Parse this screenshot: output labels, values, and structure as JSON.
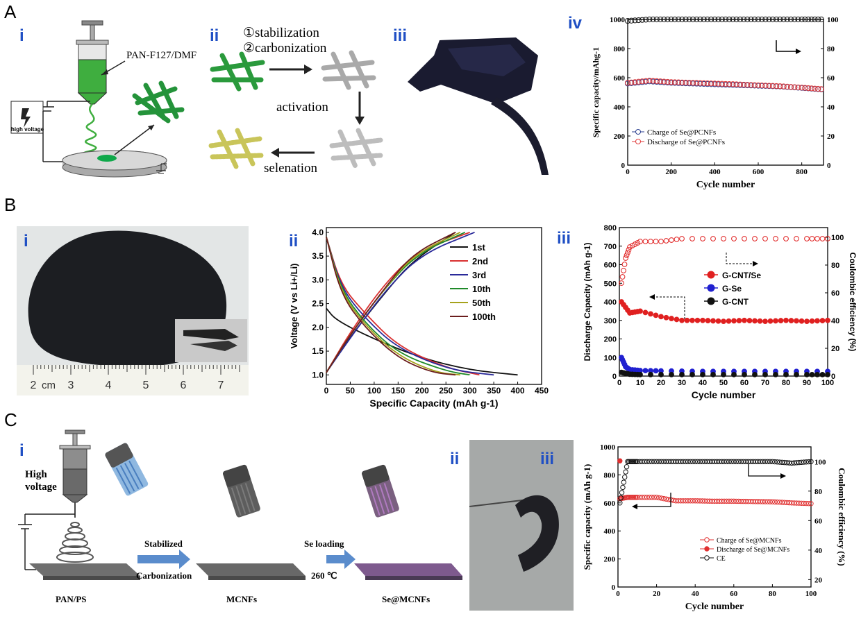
{
  "sections": {
    "A": "A",
    "B": "B",
    "C": "C"
  },
  "panel_labels": {
    "A_i": "i",
    "A_ii": "ii",
    "A_iii": "iii",
    "A_iv": "iv",
    "B_i": "i",
    "B_ii": "ii",
    "B_iii": "iii",
    "C_i": "i",
    "C_ii": "ii",
    "C_iii": "iii"
  },
  "A_i": {
    "solution": "PAN-F127/DMF",
    "hv": "high voltage"
  },
  "A_ii": {
    "step1": "①stabilization",
    "step2": "②carbonization",
    "step3": "activation",
    "step4": "selenation"
  },
  "B_i": {
    "ruler_unit": "cm",
    "ruler_ticks": [
      "2",
      "3",
      "4",
      "5",
      "6",
      "7"
    ]
  },
  "C_i": {
    "hv1": "High",
    "hv2": "voltage",
    "arrow1_top": "Stabilized",
    "arrow1_bottom": "Carbonization",
    "arrow2_top": "Se loading",
    "arrow2_bottom": "260 ℃",
    "label1": "PAN/PS",
    "label2": "MCNFs",
    "label3": "Se@MCNFs"
  },
  "chart_data": [
    {
      "id": "A_iv",
      "type": "scatter",
      "xlabel": "Cycle number",
      "ylabel": "Specific capacity/mAhg-1",
      "y2label": "",
      "xlim": [
        0,
        900
      ],
      "ylim": [
        0,
        1000
      ],
      "y2lim": [
        0,
        100
      ],
      "xticks": [
        "0",
        "200",
        "400",
        "600",
        "800"
      ],
      "yticks": [
        "0",
        "200",
        "400",
        "600",
        "800",
        "1000"
      ],
      "y2ticks": [
        "0",
        "20",
        "40",
        "60",
        "80",
        "100"
      ],
      "legend": [
        "Charge of Se@PCNFs",
        "Discharge of Se@PCNFs"
      ],
      "series": [
        {
          "name": "Charge of Se@PCNFs",
          "color": "#2b3f8f",
          "x": [
            0,
            100,
            200,
            300,
            400,
            500,
            600,
            700,
            800,
            890
          ],
          "y": [
            560,
            575,
            565,
            560,
            555,
            550,
            545,
            540,
            530,
            520
          ]
        },
        {
          "name": "Discharge of Se@PCNFs",
          "color": "#e03a3a",
          "x": [
            0,
            100,
            200,
            300,
            400,
            500,
            600,
            700,
            800,
            890
          ],
          "y": [
            565,
            580,
            570,
            565,
            560,
            555,
            548,
            542,
            532,
            522
          ]
        },
        {
          "name": "",
          "color": "#111111",
          "axis": "y2",
          "x": [
            0,
            100,
            200,
            300,
            400,
            500,
            600,
            700,
            800,
            890
          ],
          "y": [
            99,
            100,
            100,
            100,
            100,
            100,
            100,
            100,
            100,
            100
          ]
        }
      ]
    },
    {
      "id": "B_ii",
      "type": "line",
      "xlabel": "Specific Capacity (mAh g-1)",
      "ylabel": "Voltage (V vs Li+/Li)",
      "xlim": [
        0,
        450
      ],
      "ylim": [
        0.8,
        4.1
      ],
      "xticks": [
        "0",
        "50",
        "100",
        "150",
        "200",
        "250",
        "300",
        "350",
        "400",
        "450"
      ],
      "yticks": [
        "1.0",
        "1.5",
        "2.0",
        "2.5",
        "3.0",
        "3.5",
        "4.0"
      ],
      "legend": [
        "1st",
        "2nd",
        "3rd",
        "10th",
        "50th",
        "100th"
      ],
      "series": [
        {
          "name": "1st",
          "color": "#111111",
          "discharge": [
            [
              0,
              2.4
            ],
            [
              20,
              2.15
            ],
            [
              100,
              1.75
            ],
            [
              200,
              1.35
            ],
            [
              300,
              1.1
            ],
            [
              400,
              1.0
            ]
          ],
          "charge": [
            [
              0,
              1.05
            ],
            [
              50,
              1.8
            ],
            [
              120,
              2.7
            ],
            [
              180,
              3.4
            ],
            [
              270,
              4.0
            ]
          ]
        },
        {
          "name": "2nd",
          "color": "#d93030",
          "discharge": [
            [
              0,
              3.9
            ],
            [
              30,
              2.9
            ],
            [
              80,
              2.3
            ],
            [
              150,
              1.6
            ],
            [
              250,
              1.15
            ],
            [
              320,
              1.0
            ]
          ],
          "charge": [
            [
              0,
              1.05
            ],
            [
              50,
              1.9
            ],
            [
              120,
              2.9
            ],
            [
              190,
              3.6
            ],
            [
              300,
              4.0
            ]
          ]
        },
        {
          "name": "3rd",
          "color": "#2a2a9a",
          "discharge": [
            [
              0,
              3.9
            ],
            [
              30,
              2.85
            ],
            [
              80,
              2.2
            ],
            [
              150,
              1.55
            ],
            [
              260,
              1.1
            ],
            [
              350,
              1.0
            ]
          ],
          "charge": [
            [
              0,
              1.05
            ],
            [
              55,
              1.85
            ],
            [
              125,
              2.8
            ],
            [
              200,
              3.55
            ],
            [
              310,
              4.0
            ]
          ]
        },
        {
          "name": "10th",
          "color": "#1f8a2a",
          "discharge": [
            [
              0,
              3.9
            ],
            [
              30,
              2.8
            ],
            [
              80,
              2.1
            ],
            [
              150,
              1.45
            ],
            [
              250,
              1.08
            ],
            [
              300,
              1.0
            ]
          ],
          "charge": [
            [
              0,
              1.05
            ],
            [
              50,
              1.85
            ],
            [
              120,
              2.8
            ],
            [
              190,
              3.55
            ],
            [
              290,
              4.0
            ]
          ]
        },
        {
          "name": "50th",
          "color": "#a6a21c",
          "discharge": [
            [
              0,
              3.9
            ],
            [
              30,
              2.75
            ],
            [
              80,
              2.05
            ],
            [
              150,
              1.4
            ],
            [
              230,
              1.05
            ],
            [
              280,
              1.0
            ]
          ],
          "charge": [
            [
              0,
              1.05
            ],
            [
              50,
              1.85
            ],
            [
              120,
              2.8
            ],
            [
              185,
              3.55
            ],
            [
              280,
              4.0
            ]
          ]
        },
        {
          "name": "100th",
          "color": "#6b1d1d",
          "discharge": [
            [
              0,
              3.9
            ],
            [
              30,
              2.7
            ],
            [
              80,
              2.0
            ],
            [
              150,
              1.35
            ],
            [
              220,
              1.05
            ],
            [
              270,
              1.0
            ]
          ],
          "charge": [
            [
              0,
              1.05
            ],
            [
              50,
              1.85
            ],
            [
              120,
              2.8
            ],
            [
              180,
              3.55
            ],
            [
              270,
              4.0
            ]
          ]
        }
      ]
    },
    {
      "id": "B_iii",
      "type": "scatter",
      "xlabel": "Cycle number",
      "ylabel": "Discharge Capacity (mAh g-1)",
      "y2label": "Coulombic efficiency (%)",
      "xlim": [
        0,
        100
      ],
      "ylim": [
        0,
        800
      ],
      "y2lim": [
        0,
        107
      ],
      "xticks": [
        "0",
        "10",
        "20",
        "30",
        "40",
        "50",
        "60",
        "70",
        "80",
        "90",
        "100"
      ],
      "yticks": [
        "0",
        "100",
        "200",
        "300",
        "400",
        "500",
        "600",
        "700",
        "800"
      ],
      "y2ticks": [
        "0",
        "20",
        "40",
        "60",
        "80",
        "100"
      ],
      "legend": [
        "G-CNT/Se",
        "G-Se",
        "G-CNT"
      ],
      "series": [
        {
          "name": "G-CNT/Se",
          "color": "#e02020",
          "x": [
            1,
            5,
            10,
            20,
            30,
            40,
            50,
            60,
            70,
            80,
            90,
            100
          ],
          "y": [
            400,
            340,
            350,
            320,
            300,
            300,
            295,
            300,
            295,
            300,
            295,
            300
          ]
        },
        {
          "name": "G-Se",
          "color": "#2020d0",
          "x": [
            1,
            3,
            5,
            10,
            20,
            40,
            60,
            80,
            100
          ],
          "y": [
            100,
            50,
            35,
            30,
            28,
            25,
            25,
            25,
            25
          ]
        },
        {
          "name": "G-CNT",
          "color": "#111111",
          "x": [
            1,
            5,
            10,
            30,
            50,
            70,
            90,
            100
          ],
          "y": [
            20,
            10,
            8,
            8,
            8,
            8,
            8,
            8
          ]
        },
        {
          "name": "",
          "color": "#e02020",
          "axis": "y2",
          "x": [
            1,
            3,
            5,
            10,
            20,
            30,
            50,
            70,
            90,
            100
          ],
          "y": [
            67,
            85,
            93,
            97,
            97,
            99,
            99,
            99,
            99,
            99
          ]
        }
      ]
    },
    {
      "id": "C_iii",
      "type": "scatter",
      "xlabel": "Cycle number",
      "ylabel": "Specific capacity (mAh g-1)",
      "y2label": "Coulombic efficiency (%)",
      "xlim": [
        0,
        100
      ],
      "ylim": [
        0,
        1000
      ],
      "y2lim": [
        15,
        110
      ],
      "xticks": [
        "0",
        "20",
        "40",
        "60",
        "80",
        "100"
      ],
      "yticks": [
        "0",
        "200",
        "400",
        "600",
        "800",
        "1000"
      ],
      "y2ticks": [
        "20",
        "40",
        "60",
        "80",
        "100"
      ],
      "legend": [
        "Charge of Se@MCNFs",
        "Discharge of Se@MCNFs",
        "CE"
      ],
      "series": [
        {
          "name": "Charge of Se@MCNFs",
          "color": "#e03030",
          "x": [
            1,
            5,
            10,
            20,
            30,
            40,
            50,
            60,
            70,
            80,
            90,
            100
          ],
          "y": [
            630,
            640,
            640,
            640,
            615,
            615,
            612,
            612,
            610,
            608,
            600,
            595
          ]
        },
        {
          "name": "Discharge of Se@MCNFs",
          "color": "#e03030",
          "x": [
            1,
            5,
            10,
            20,
            30,
            40,
            50,
            60,
            70,
            80,
            90,
            100
          ],
          "y": [
            900,
            640,
            640,
            640,
            615,
            615,
            612,
            612,
            610,
            608,
            600,
            595
          ]
        },
        {
          "name": "CE",
          "color": "#111111",
          "axis": "y2",
          "x": [
            1,
            5,
            10,
            20,
            30,
            40,
            50,
            60,
            70,
            80,
            90,
            100
          ],
          "y": [
            72,
            100,
            100,
            100,
            100,
            100,
            100,
            100,
            100,
            100,
            99,
            100
          ]
        }
      ]
    }
  ]
}
